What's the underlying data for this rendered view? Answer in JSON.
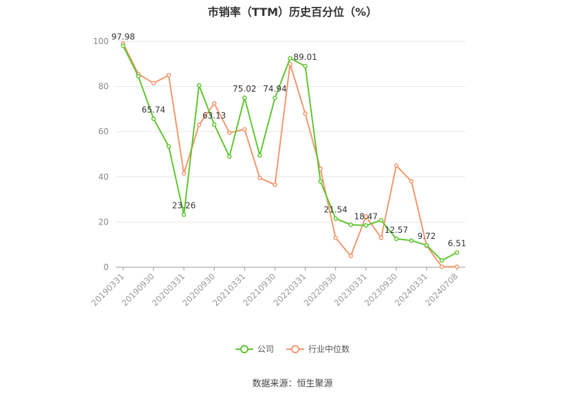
{
  "chart_data": {
    "type": "line",
    "title": "市销率（TTM）历史百分位（%）",
    "ylim": [
      0,
      100
    ],
    "yticks": [
      0,
      20,
      40,
      60,
      80,
      100
    ],
    "x_tick_labels": [
      "20190331",
      "20190930",
      "20200331",
      "20200930",
      "20210331",
      "20210930",
      "20220331",
      "20220930",
      "20230331",
      "20230930",
      "20240331",
      "20240708"
    ],
    "x": [
      "20190331",
      "20190630",
      "20190930",
      "20191231",
      "20200331",
      "20200630",
      "20200930",
      "20201231",
      "20210331",
      "20210630",
      "20210930",
      "20211231",
      "20220331",
      "20220630",
      "20220930",
      "20221231",
      "20230331",
      "20230630",
      "20230930",
      "20231231",
      "20240331",
      "20240630",
      "20240708"
    ],
    "series": [
      {
        "name": "公司",
        "color": "#5ec52e",
        "values": [
          97.98,
          84.5,
          65.74,
          53.5,
          23.26,
          80.5,
          63.13,
          49.0,
          75.02,
          49.5,
          74.94,
          92.5,
          89.01,
          38.0,
          21.54,
          18.8,
          18.47,
          20.8,
          12.57,
          11.8,
          9.72,
          3.0,
          6.51
        ],
        "labels": {
          "0": "97.98",
          "2": "65.74",
          "4": "23.26",
          "6": "63.13",
          "8": "75.02",
          "10": "74.94",
          "12": "89.01",
          "14": "21.54",
          "16": "18.47",
          "18": "12.57",
          "20": "9.72",
          "22": "6.51"
        }
      },
      {
        "name": "行业中位数",
        "color": "#f5956b",
        "values": [
          99.0,
          85.5,
          81.5,
          85.0,
          41.5,
          63.0,
          72.5,
          59.5,
          61.0,
          39.5,
          36.5,
          90.0,
          68.0,
          43.5,
          13.0,
          5.0,
          22.5,
          13.0,
          45.0,
          38.0,
          9.5,
          0.2,
          0.2
        ]
      }
    ],
    "legend_position": "bottom",
    "grid": true,
    "source": "数据来源：恒生聚源"
  }
}
